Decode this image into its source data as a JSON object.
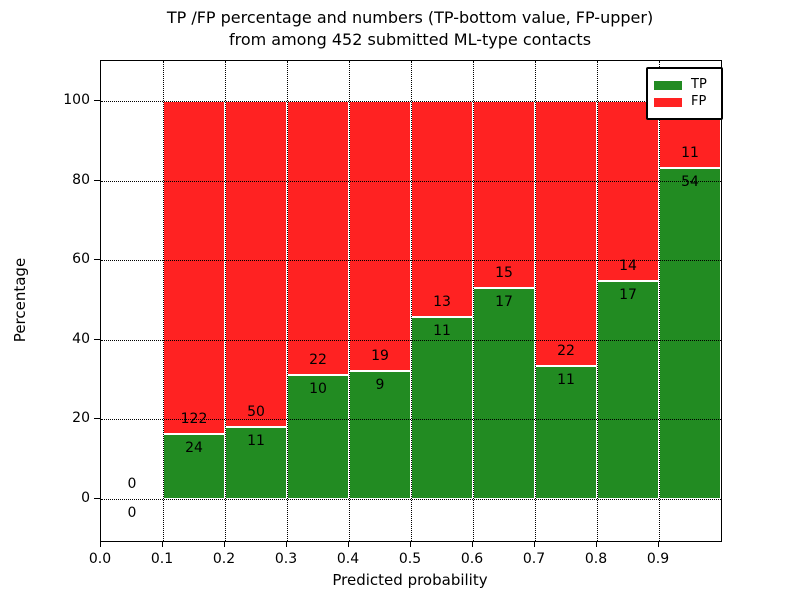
{
  "chart_data": {
    "type": "bar",
    "stacked": true,
    "title_line1": "TP /FP percentage and numbers (TP-bottom value, FP-upper)",
    "title_line2": "from among 452 submitted ML-type contacts",
    "xlabel": "Predicted probability",
    "ylabel": "Percentage",
    "total_contacts": 452,
    "x_tick_labels": [
      "0.0",
      "0.1",
      "0.2",
      "0.3",
      "0.4",
      "0.5",
      "0.6",
      "0.7",
      "0.8",
      "0.9"
    ],
    "y_tick_labels": [
      "0",
      "20",
      "40",
      "60",
      "80",
      "100"
    ],
    "xlim": [
      0.0,
      1.0
    ],
    "ylim": [
      -11,
      110
    ],
    "grid": "dotted",
    "legend": {
      "position": "upper right",
      "items": [
        {
          "label": "TP",
          "color": "#228b22"
        },
        {
          "label": "FP",
          "color": "#ff2222"
        }
      ]
    },
    "colors": {
      "tp": "#228b22",
      "fp": "#ff2222",
      "bar_edge": "#ffffff"
    },
    "bins": [
      {
        "x_start": 0.0,
        "x_end": 0.1,
        "tp_count": 0,
        "fp_count": 0,
        "tp_pct": 0,
        "fp_pct": 0
      },
      {
        "x_start": 0.1,
        "x_end": 0.2,
        "tp_count": 24,
        "fp_count": 122,
        "tp_pct": 16.44,
        "fp_pct": 83.56
      },
      {
        "x_start": 0.2,
        "x_end": 0.3,
        "tp_count": 11,
        "fp_count": 50,
        "tp_pct": 18.03,
        "fp_pct": 81.97
      },
      {
        "x_start": 0.3,
        "x_end": 0.4,
        "tp_count": 10,
        "fp_count": 22,
        "tp_pct": 31.25,
        "fp_pct": 68.75
      },
      {
        "x_start": 0.4,
        "x_end": 0.5,
        "tp_count": 9,
        "fp_count": 19,
        "tp_pct": 32.14,
        "fp_pct": 67.86
      },
      {
        "x_start": 0.5,
        "x_end": 0.6,
        "tp_count": 11,
        "fp_count": 13,
        "tp_pct": 45.83,
        "fp_pct": 54.17
      },
      {
        "x_start": 0.6,
        "x_end": 0.7,
        "tp_count": 17,
        "fp_count": 15,
        "tp_pct": 53.13,
        "fp_pct": 46.87
      },
      {
        "x_start": 0.7,
        "x_end": 0.8,
        "tp_count": 11,
        "fp_count": 22,
        "tp_pct": 33.33,
        "fp_pct": 66.67
      },
      {
        "x_start": 0.8,
        "x_end": 0.9,
        "tp_count": 17,
        "fp_count": 14,
        "tp_pct": 54.84,
        "fp_pct": 45.16
      },
      {
        "x_start": 0.9,
        "x_end": 1.0,
        "tp_count": 54,
        "fp_count": 11,
        "tp_pct": 83.08,
        "fp_pct": 16.92
      }
    ]
  }
}
